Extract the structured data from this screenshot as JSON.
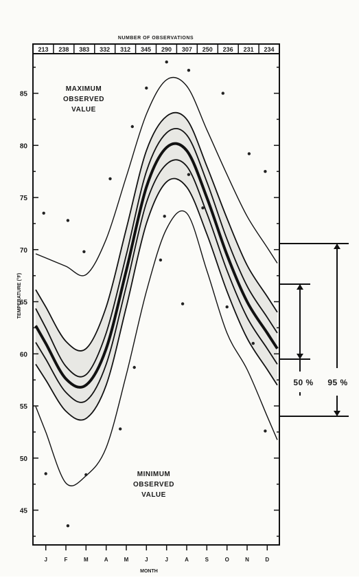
{
  "chart_data": {
    "type": "line",
    "title": "NUMBER OF OBSERVATIONS",
    "xlabel": "MONTH",
    "ylabel": "TEMPERATURE (°F)",
    "x_ticks": [
      "J",
      "F",
      "M",
      "A",
      "M",
      "J",
      "J",
      "A",
      "S",
      "O",
      "N",
      "D"
    ],
    "y_ticks": [
      45,
      50,
      55,
      60,
      65,
      70,
      75,
      80,
      85
    ],
    "ylim": [
      41.8,
      88.8
    ],
    "observations": [
      213,
      238,
      383,
      332,
      312,
      345,
      290,
      307,
      250,
      236,
      231,
      234
    ],
    "labels": {
      "max_observed": [
        "MAXIMUM",
        "OBSERVED",
        "VALUE"
      ],
      "min_observed": [
        "MINIMUM",
        "OBSERVED",
        "VALUE"
      ],
      "band_50": "50 %",
      "band_95": "95 %"
    },
    "x": [
      0.5,
      1.5,
      2.5,
      3.5,
      4.5,
      5.5,
      6.5,
      7.5,
      8.5,
      9.5,
      10.5,
      11.5
    ],
    "series": [
      {
        "role": "max",
        "values": [
          69.2,
          68.4,
          67.6,
          71.0,
          77.0,
          83.0,
          86.3,
          85.7,
          81.5,
          77.2,
          73.2,
          70.2
        ]
      },
      {
        "role": "upper95",
        "values": [
          64.5,
          61.2,
          60.5,
          64.5,
          72.0,
          79.5,
          82.8,
          82.5,
          78.0,
          73.0,
          68.5,
          65.5
        ]
      },
      {
        "role": "upper50",
        "values": [
          62.5,
          58.8,
          58.0,
          62.0,
          69.5,
          77.5,
          81.2,
          81.0,
          76.5,
          71.0,
          66.5,
          63.5
        ]
      },
      {
        "role": "median",
        "values": [
          61.0,
          57.6,
          57.0,
          60.5,
          68.0,
          76.0,
          79.8,
          79.5,
          75.0,
          69.5,
          65.0,
          62.0
        ]
      },
      {
        "role": "lower50",
        "values": [
          59.5,
          56.3,
          55.5,
          59.0,
          66.5,
          74.5,
          78.2,
          78.0,
          73.5,
          68.0,
          63.5,
          60.5
        ]
      },
      {
        "role": "lower95",
        "values": [
          57.5,
          54.5,
          53.8,
          57.0,
          64.5,
          72.5,
          76.5,
          76.0,
          71.5,
          66.0,
          61.5,
          58.5
        ]
      },
      {
        "role": "min",
        "values": [
          52.5,
          47.6,
          48.3,
          51.0,
          58.0,
          66.0,
          72.0,
          73.5,
          68.0,
          62.0,
          58.5,
          54.0
        ]
      }
    ],
    "scatter": [
      {
        "x": 0.4,
        "y": 73.5
      },
      {
        "x": 0.5,
        "y": 48.5
      },
      {
        "x": 1.6,
        "y": 72.8
      },
      {
        "x": 1.6,
        "y": 43.5
      },
      {
        "x": 2.4,
        "y": 69.8
      },
      {
        "x": 2.5,
        "y": 48.4
      },
      {
        "x": 3.7,
        "y": 76.8
      },
      {
        "x": 4.2,
        "y": 52.8
      },
      {
        "x": 4.8,
        "y": 81.8
      },
      {
        "x": 4.9,
        "y": 58.7
      },
      {
        "x": 5.5,
        "y": 85.5
      },
      {
        "x": 6.2,
        "y": 69.0
      },
      {
        "x": 6.4,
        "y": 73.2
      },
      {
        "x": 6.5,
        "y": 88.0
      },
      {
        "x": 7.3,
        "y": 64.8
      },
      {
        "x": 7.6,
        "y": 87.2
      },
      {
        "x": 7.6,
        "y": 77.2
      },
      {
        "x": 8.3,
        "y": 74.0
      },
      {
        "x": 9.3,
        "y": 85.0
      },
      {
        "x": 9.5,
        "y": 64.5
      },
      {
        "x": 10.6,
        "y": 79.2
      },
      {
        "x": 10.8,
        "y": 61.0
      },
      {
        "x": 11.4,
        "y": 77.5
      },
      {
        "x": 11.4,
        "y": 52.6
      }
    ]
  }
}
